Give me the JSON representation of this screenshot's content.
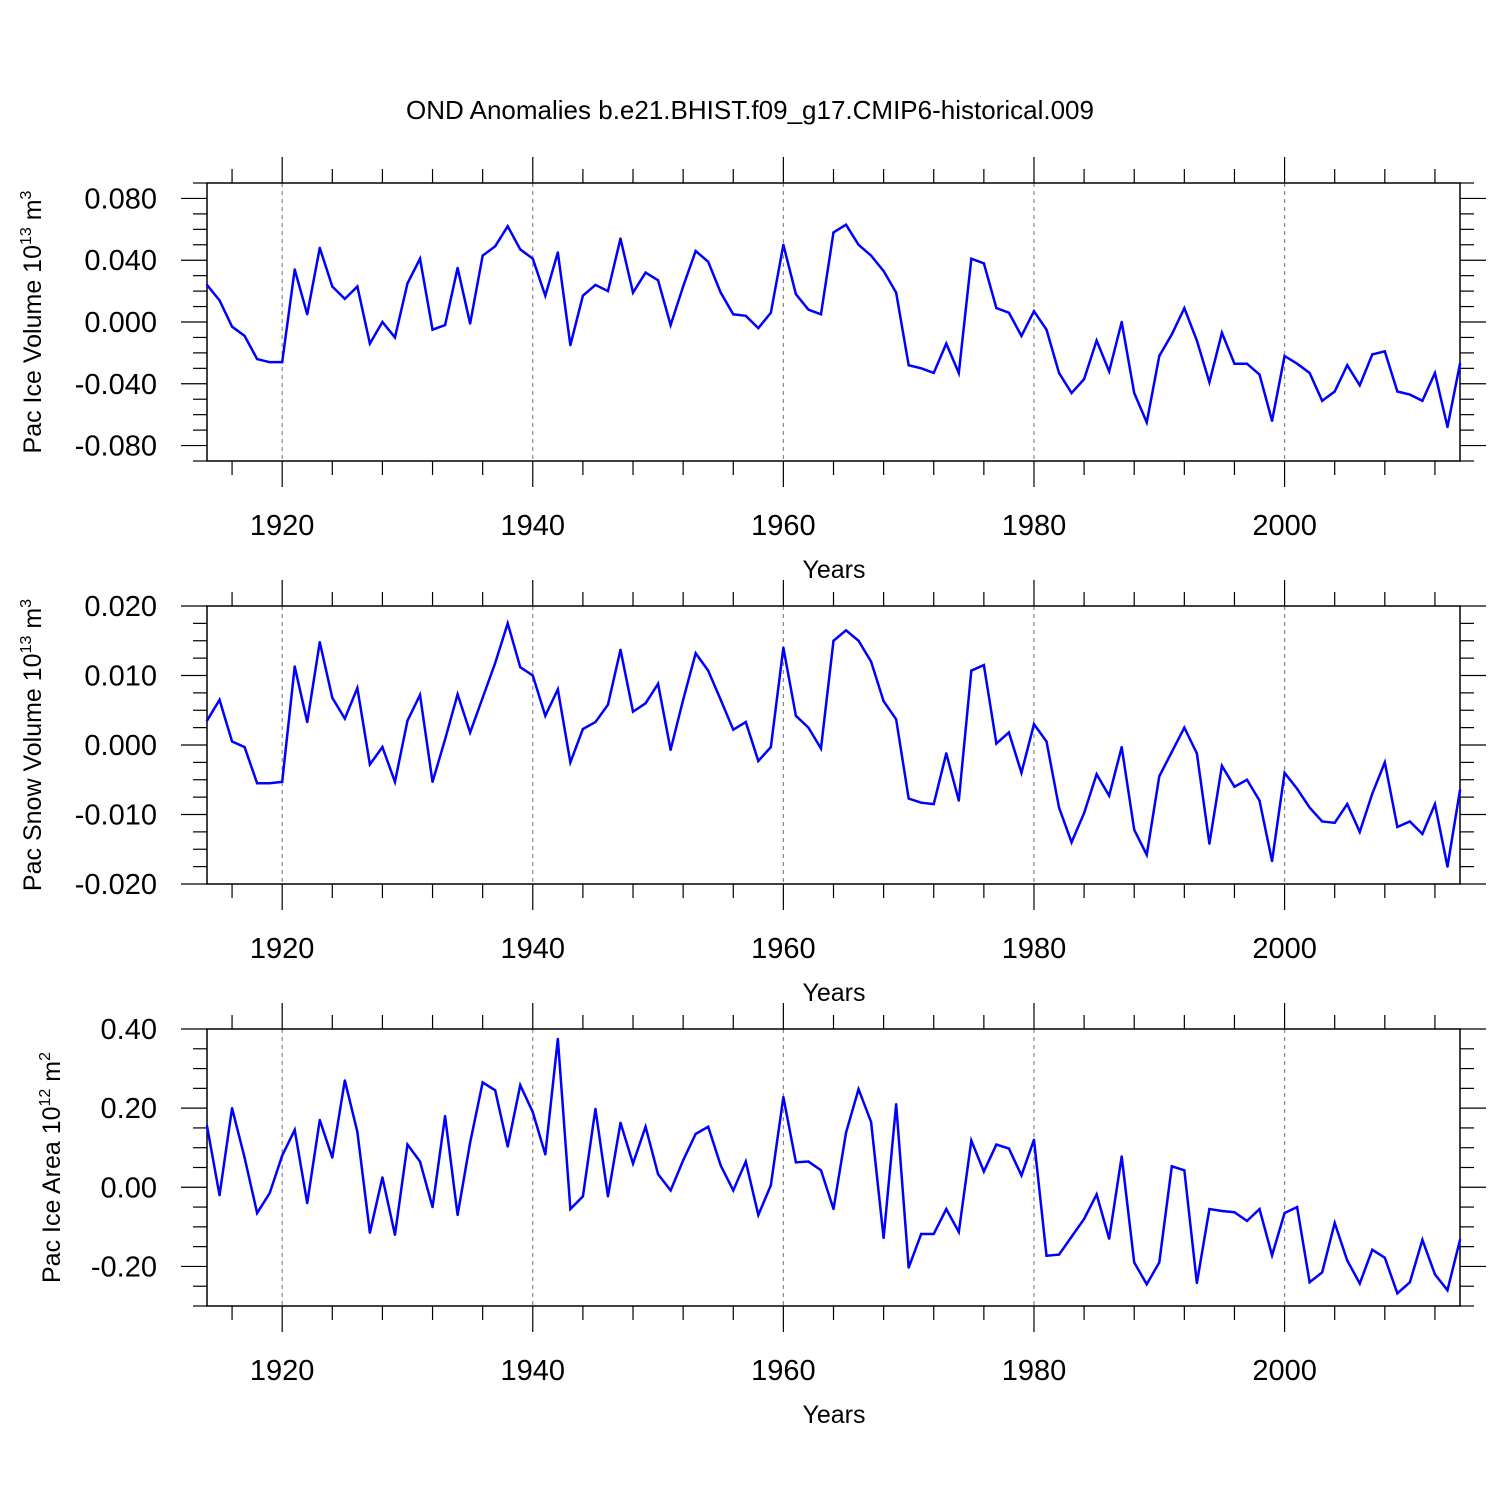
{
  "title": "OND Anomalies b.e21.BHIST.f09_g17.CMIP6-historical.009",
  "chart_data": [
    {
      "type": "line",
      "name": "pac-ice-volume",
      "ylabel": "Pac Ice Volume",
      "units_base": "10",
      "units_exp": "13",
      "units_unit": "m",
      "units_unit_exp": "3",
      "xlabel": "Years",
      "xlim": [
        1914,
        2014
      ],
      "ylim": [
        -0.09,
        0.09
      ],
      "yticks": [
        -0.08,
        -0.04,
        0.0,
        0.04,
        0.08
      ],
      "ytick_labels": [
        "-0.080",
        "-0.040",
        "0.000",
        "0.040",
        "0.080"
      ],
      "xticks": [
        1920,
        1940,
        1960,
        1980,
        2000
      ],
      "xtick_labels": [
        "1920",
        "1940",
        "1960",
        "1980",
        "2000"
      ],
      "grid_x": [
        1920,
        1940,
        1960,
        1980,
        2000
      ],
      "color": "#0000ff",
      "x": [
        1914,
        1915,
        1916,
        1917,
        1918,
        1919,
        1920,
        1921,
        1922,
        1923,
        1924,
        1925,
        1926,
        1927,
        1928,
        1929,
        1930,
        1931,
        1932,
        1933,
        1934,
        1935,
        1936,
        1937,
        1938,
        1939,
        1940,
        1941,
        1942,
        1943,
        1944,
        1945,
        1946,
        1947,
        1948,
        1949,
        1950,
        1951,
        1952,
        1953,
        1954,
        1955,
        1956,
        1957,
        1958,
        1959,
        1960,
        1961,
        1962,
        1963,
        1964,
        1965,
        1966,
        1967,
        1968,
        1969,
        1970,
        1971,
        1972,
        1973,
        1974,
        1975,
        1976,
        1977,
        1978,
        1979,
        1980,
        1981,
        1982,
        1983,
        1984,
        1985,
        1986,
        1987,
        1988,
        1989,
        1990,
        1991,
        1992,
        1993,
        1994,
        1995,
        1996,
        1997,
        1998,
        1999,
        2000,
        2001,
        2002,
        2003,
        2004,
        2005,
        2006,
        2007,
        2008,
        2009,
        2010,
        2011,
        2012,
        2013,
        2014
      ],
      "values": [
        0.024,
        0.014,
        -0.003,
        -0.009,
        -0.024,
        -0.026,
        -0.026,
        0.034,
        0.005,
        0.048,
        0.023,
        0.015,
        0.023,
        -0.014,
        0.0,
        -0.01,
        0.025,
        0.041,
        -0.005,
        -0.002,
        0.035,
        -0.001,
        0.043,
        0.049,
        0.062,
        0.047,
        0.041,
        0.017,
        0.045,
        -0.015,
        0.017,
        0.024,
        0.02,
        0.054,
        0.019,
        0.032,
        0.027,
        -0.002,
        0.023,
        0.046,
        0.039,
        0.019,
        0.005,
        0.004,
        -0.004,
        0.006,
        0.05,
        0.018,
        0.008,
        0.005,
        0.058,
        0.063,
        0.05,
        0.043,
        0.033,
        0.019,
        -0.028,
        -0.03,
        -0.033,
        -0.014,
        -0.033,
        0.041,
        0.038,
        0.009,
        0.006,
        -0.009,
        0.007,
        -0.005,
        -0.033,
        -0.046,
        -0.037,
        -0.012,
        -0.032,
        0.0,
        -0.046,
        -0.065,
        -0.022,
        -0.008,
        0.009,
        -0.012,
        -0.039,
        -0.007,
        -0.027,
        -0.027,
        -0.034,
        -0.064,
        -0.022,
        -0.027,
        -0.033,
        -0.051,
        -0.045,
        -0.028,
        -0.041,
        -0.021,
        -0.019,
        -0.045,
        -0.047,
        -0.051,
        -0.033,
        -0.068,
        -0.027
      ]
    },
    {
      "type": "line",
      "name": "pac-snow-volume",
      "ylabel": "Pac Snow Volume",
      "units_base": "10",
      "units_exp": "13",
      "units_unit": "m",
      "units_unit_exp": "3",
      "xlabel": "Years",
      "xlim": [
        1914,
        2014
      ],
      "ylim": [
        -0.02,
        0.02
      ],
      "yticks": [
        -0.02,
        -0.01,
        0.0,
        0.01,
        0.02
      ],
      "ytick_labels": [
        "-0.020",
        "-0.010",
        "0.000",
        "0.010",
        "0.020"
      ],
      "xticks": [
        1920,
        1940,
        1960,
        1980,
        2000
      ],
      "xtick_labels": [
        "1920",
        "1940",
        "1960",
        "1980",
        "2000"
      ],
      "grid_x": [
        1920,
        1940,
        1960,
        1980,
        2000
      ],
      "color": "#0000ff",
      "x": [
        1914,
        1915,
        1916,
        1917,
        1918,
        1919,
        1920,
        1921,
        1922,
        1923,
        1924,
        1925,
        1926,
        1927,
        1928,
        1929,
        1930,
        1931,
        1932,
        1933,
        1934,
        1935,
        1936,
        1937,
        1938,
        1939,
        1940,
        1941,
        1942,
        1943,
        1944,
        1945,
        1946,
        1947,
        1948,
        1949,
        1950,
        1951,
        1952,
        1953,
        1954,
        1955,
        1956,
        1957,
        1958,
        1959,
        1960,
        1961,
        1962,
        1963,
        1964,
        1965,
        1966,
        1967,
        1968,
        1969,
        1970,
        1971,
        1972,
        1973,
        1974,
        1975,
        1976,
        1977,
        1978,
        1979,
        1980,
        1981,
        1982,
        1983,
        1984,
        1985,
        1986,
        1987,
        1988,
        1989,
        1990,
        1991,
        1992,
        1993,
        1994,
        1995,
        1996,
        1997,
        1998,
        1999,
        2000,
        2001,
        2002,
        2003,
        2004,
        2005,
        2006,
        2007,
        2008,
        2009,
        2010,
        2011,
        2012,
        2013,
        2014
      ],
      "values": [
        0.0035,
        0.0065,
        0.0005,
        -0.0003,
        -0.0055,
        -0.0055,
        -0.0053,
        0.0113,
        0.0033,
        0.0148,
        0.0068,
        0.0038,
        0.0082,
        -0.0028,
        -0.0003,
        -0.0053,
        0.0035,
        0.0072,
        -0.0053,
        0.0008,
        0.0073,
        0.0018,
        0.0068,
        0.0118,
        0.0175,
        0.0112,
        0.01,
        0.0042,
        0.008,
        -0.0025,
        0.0023,
        0.0033,
        0.0058,
        0.0137,
        0.0048,
        0.006,
        0.0088,
        -0.0007,
        0.0065,
        0.0132,
        0.0107,
        0.0065,
        0.0022,
        0.0033,
        -0.0023,
        -0.0003,
        0.014,
        0.0042,
        0.0025,
        -0.0005,
        0.015,
        0.0165,
        0.015,
        0.012,
        0.0063,
        0.0037,
        -0.0077,
        -0.0083,
        -0.0085,
        -0.0012,
        -0.008,
        0.0107,
        0.0115,
        0.0002,
        0.0018,
        -0.004,
        0.003,
        0.0005,
        -0.009,
        -0.014,
        -0.0098,
        -0.0042,
        -0.0073,
        -0.0003,
        -0.0122,
        -0.0158,
        -0.0045,
        -0.001,
        0.0025,
        -0.0012,
        -0.0142,
        -0.003,
        -0.006,
        -0.005,
        -0.008,
        -0.0167,
        -0.004,
        -0.0063,
        -0.009,
        -0.011,
        -0.0112,
        -0.0085,
        -0.0125,
        -0.007,
        -0.0025,
        -0.0118,
        -0.011,
        -0.0128,
        -0.0085,
        -0.0175,
        -0.0065
      ]
    },
    {
      "type": "line",
      "name": "pac-ice-area",
      "ylabel": "Pac Ice Area",
      "units_base": "10",
      "units_exp": "12",
      "units_unit": "m",
      "units_unit_exp": "2",
      "xlabel": "Years",
      "xlim": [
        1914,
        2014
      ],
      "ylim": [
        -0.3,
        0.4
      ],
      "yticks": [
        -0.2,
        0.0,
        0.2,
        0.4
      ],
      "ytick_labels": [
        "-0.20",
        "0.00",
        "0.20",
        "0.40"
      ],
      "xticks": [
        1920,
        1940,
        1960,
        1980,
        2000
      ],
      "xtick_labels": [
        "1920",
        "1940",
        "1960",
        "1980",
        "2000"
      ],
      "grid_x": [
        1920,
        1940,
        1960,
        1980,
        2000
      ],
      "color": "#0000ff",
      "x": [
        1914,
        1915,
        1916,
        1917,
        1918,
        1919,
        1920,
        1921,
        1922,
        1923,
        1924,
        1925,
        1926,
        1927,
        1928,
        1929,
        1930,
        1931,
        1932,
        1933,
        1934,
        1935,
        1936,
        1937,
        1938,
        1939,
        1940,
        1941,
        1942,
        1943,
        1944,
        1945,
        1946,
        1947,
        1948,
        1949,
        1950,
        1951,
        1952,
        1953,
        1954,
        1955,
        1956,
        1957,
        1958,
        1959,
        1960,
        1961,
        1962,
        1963,
        1964,
        1965,
        1966,
        1967,
        1968,
        1969,
        1970,
        1971,
        1972,
        1973,
        1974,
        1975,
        1976,
        1977,
        1978,
        1979,
        1980,
        1981,
        1982,
        1983,
        1984,
        1985,
        1986,
        1987,
        1988,
        1989,
        1990,
        1991,
        1992,
        1993,
        1994,
        1995,
        1996,
        1997,
        1998,
        1999,
        2000,
        2001,
        2002,
        2003,
        2004,
        2005,
        2006,
        2007,
        2008,
        2009,
        2010,
        2011,
        2012,
        2013,
        2014
      ],
      "values": [
        0.155,
        -0.02,
        0.2,
        0.075,
        -0.065,
        -0.015,
        0.08,
        0.145,
        -0.04,
        0.17,
        0.075,
        0.27,
        0.14,
        -0.115,
        0.025,
        -0.12,
        0.108,
        0.065,
        -0.05,
        0.18,
        -0.07,
        0.113,
        0.265,
        0.245,
        0.103,
        0.258,
        0.19,
        0.083,
        0.375,
        -0.055,
        -0.023,
        0.198,
        -0.023,
        0.163,
        0.06,
        0.153,
        0.033,
        -0.008,
        0.068,
        0.135,
        0.153,
        0.055,
        -0.008,
        0.065,
        -0.07,
        0.005,
        0.228,
        0.063,
        0.065,
        0.043,
        -0.055,
        0.138,
        0.248,
        0.165,
        -0.128,
        0.21,
        -0.203,
        -0.118,
        -0.118,
        -0.055,
        -0.113,
        0.118,
        0.04,
        0.108,
        0.098,
        0.03,
        0.12,
        -0.173,
        -0.17,
        -0.125,
        -0.08,
        -0.018,
        -0.13,
        0.078,
        -0.19,
        -0.245,
        -0.19,
        0.053,
        0.043,
        -0.242,
        -0.055,
        -0.06,
        -0.063,
        -0.085,
        -0.055,
        -0.172,
        -0.065,
        -0.05,
        -0.24,
        -0.215,
        -0.09,
        -0.185,
        -0.243,
        -0.158,
        -0.178,
        -0.268,
        -0.24,
        -0.133,
        -0.22,
        -0.26,
        -0.133
      ]
    }
  ]
}
